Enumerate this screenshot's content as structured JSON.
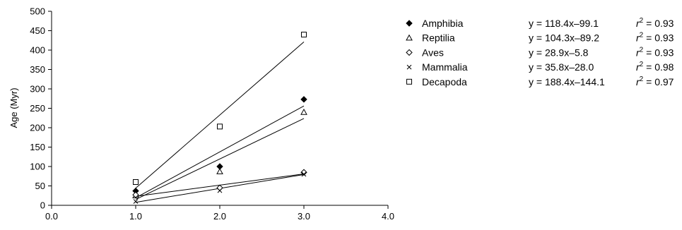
{
  "chart_data": {
    "type": "scatter",
    "title": "",
    "xlabel": "",
    "ylabel": "Age (Myr)",
    "xlim": [
      0,
      4
    ],
    "ylim": [
      0,
      500
    ],
    "xticks": [
      "0.0",
      "1.0",
      "2.0",
      "3.0",
      "4.0"
    ],
    "yticks": [
      "0",
      "50",
      "100",
      "150",
      "200",
      "250",
      "300",
      "350",
      "400",
      "450",
      "500"
    ],
    "grid": false,
    "legend_position": "right",
    "series": [
      {
        "name": "Amphibia",
        "marker": "filled-diamond",
        "x": [
          1.0,
          2.0,
          3.0
        ],
        "y": [
          37,
          100,
          273
        ],
        "equation": "y = 118.4x–99.1",
        "r2_prefix": "r",
        "r2_value": " = 0.93",
        "fit": {
          "slope": 118.4,
          "intercept": -99.1
        }
      },
      {
        "name": "Reptilia",
        "marker": "open-triangle",
        "x": [
          1.0,
          2.0,
          3.0
        ],
        "y": [
          25,
          87,
          240
        ],
        "equation": "y = 104.3x–89.2",
        "r2_prefix": "r",
        "r2_value": " = 0.93",
        "fit": {
          "slope": 104.3,
          "intercept": -89.2
        }
      },
      {
        "name": "Aves",
        "marker": "open-diamond",
        "x": [
          1.0,
          2.0,
          3.0
        ],
        "y": [
          27,
          45,
          85
        ],
        "equation": "y = 28.9x–5.8",
        "r2_prefix": "r",
        "r2_value": " = 0.93",
        "fit": {
          "slope": 28.9,
          "intercept": -5.8
        }
      },
      {
        "name": "Mammalia",
        "marker": "cross",
        "x": [
          1.0,
          2.0,
          3.0
        ],
        "y": [
          10,
          38,
          80
        ],
        "equation": "y = 35.8x–28.0",
        "r2_prefix": "r",
        "r2_value": " = 0.98",
        "fit": {
          "slope": 35.8,
          "intercept": -28.0
        }
      },
      {
        "name": "Decapoda",
        "marker": "open-square",
        "x": [
          1.0,
          2.0,
          3.0
        ],
        "y": [
          60,
          203,
          440
        ],
        "equation": "y = 188.4x–144.1",
        "r2_prefix": "r",
        "r2_value": " = 0.97",
        "fit": {
          "slope": 188.4,
          "intercept": -144.1
        }
      }
    ]
  }
}
